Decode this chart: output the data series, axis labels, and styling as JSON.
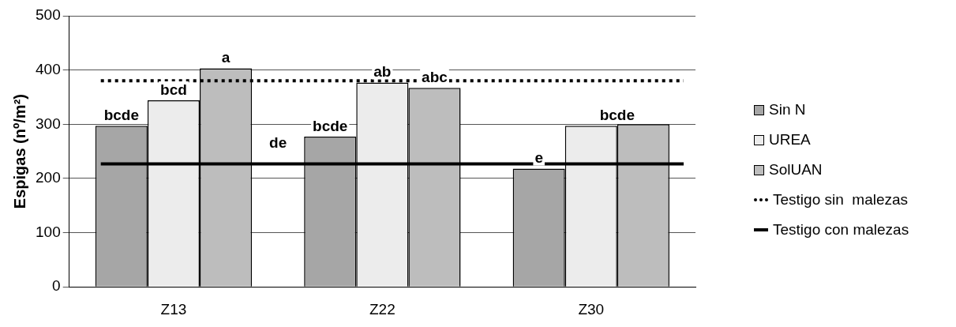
{
  "chart_data": {
    "type": "bar",
    "ylabel": "Espigas (nº/m²)",
    "categories": [
      "Z13",
      "Z22",
      "Z30"
    ],
    "series": [
      {
        "name": "Sin N",
        "color": "#a6a6a6",
        "values": [
          297,
          277,
          218
        ],
        "value_labels": [
          "bcde",
          "bcde",
          "e"
        ]
      },
      {
        "name": "UREA",
        "color": "#ececec",
        "values": [
          344,
          377,
          297
        ],
        "value_labels": [
          "bcd",
          "ab",
          "bcde"
        ]
      },
      {
        "name": "SolUAN",
        "color": "#bdbdbd",
        "values": [
          403,
          367,
          300
        ],
        "value_labels": [
          "a",
          "abc",
          null
        ]
      }
    ],
    "ref_lines": [
      {
        "axis": "y",
        "value": 380,
        "label": "Testigo sin  malezas",
        "color": "#000000",
        "line_style": "dotted"
      },
      {
        "axis": "y",
        "value": 227,
        "label": "Testigo con malezas",
        "color": "#000000",
        "line_style": "solid"
      }
    ],
    "annotations": [
      "de"
    ],
    "ylim": [
      0,
      500
    ],
    "yticks": [
      0,
      100,
      200,
      300,
      400,
      500
    ],
    "grid": "y",
    "legend": "right"
  }
}
